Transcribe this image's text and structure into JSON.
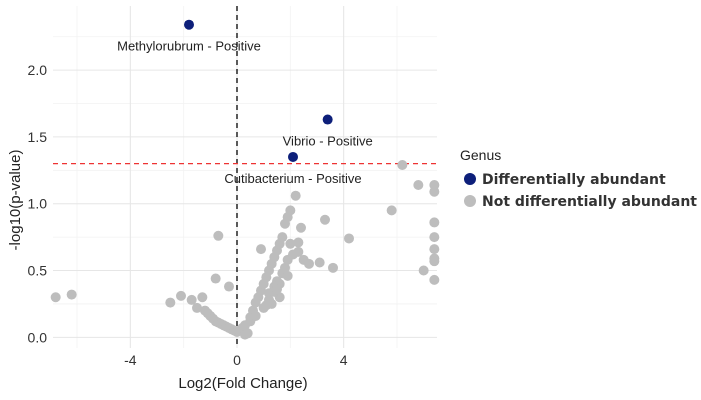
{
  "chart_data": {
    "type": "scatter",
    "title": "",
    "xlabel": "Log2(Fold Change)",
    "ylabel": "-log10(p-value)",
    "xlim": [
      -6.9,
      7.5
    ],
    "ylim": [
      -0.08,
      2.48
    ],
    "x_ticks": [
      -4,
      0,
      4
    ],
    "y_ticks": [
      0.0,
      0.5,
      1.0,
      1.5,
      2.0
    ],
    "x_tick_labels": [
      "-4",
      "0",
      "4"
    ],
    "y_tick_labels": [
      "0.0",
      "0.5",
      "1.0",
      "1.5",
      "2.0"
    ],
    "grid": true,
    "legend_position": "right",
    "legend": {
      "title": "Genus",
      "entries": [
        {
          "label": "Differentially abundant",
          "color": "#0d1f7a"
        },
        {
          "label": "Not differentially abundant",
          "color": "#bdbdbd"
        }
      ]
    },
    "reference_lines": [
      {
        "axis": "x",
        "value": 0,
        "style": "dashed",
        "color": "#000000"
      },
      {
        "axis": "y",
        "value": 1.3,
        "style": "dashed",
        "color": "#ee3333"
      }
    ],
    "series": [
      {
        "name": "Differentially abundant",
        "color": "#0d1f7a",
        "x": [
          -1.8,
          3.4,
          2.1
        ],
        "y": [
          2.34,
          1.63,
          1.35
        ]
      },
      {
        "name": "Not differentially abundant",
        "color": "#bdbdbd",
        "x": [
          -6.8,
          -6.2,
          -2.5,
          -2.1,
          -1.7,
          -1.5,
          -1.3,
          -1.2,
          -1.1,
          -1.0,
          -0.9,
          -0.8,
          -0.7,
          -0.6,
          -0.5,
          -0.4,
          -0.3,
          -0.2,
          -0.1,
          0.0,
          0.1,
          0.2,
          0.3,
          -0.8,
          -0.3,
          0.5,
          0.6,
          0.7,
          0.8,
          0.9,
          1.0,
          1.1,
          1.2,
          1.3,
          1.4,
          1.5,
          1.6,
          1.7,
          1.8,
          1.9,
          2.0,
          2.2,
          2.4,
          1.2,
          1.4,
          1.5,
          1.7,
          1.8,
          1.9,
          2.1,
          1.3,
          1.6,
          1.0,
          1.2,
          1.4,
          1.6,
          2.3,
          2.5,
          2.7,
          3.1,
          3.3,
          3.6,
          4.2,
          5.8,
          6.2,
          6.8,
          7.0,
          7.4,
          7.4,
          7.4,
          7.4,
          7.4,
          7.4,
          7.4,
          7.4,
          -0.7,
          0.9,
          2.0,
          0.5,
          0.7,
          1.1,
          1.5,
          1.9,
          2.3,
          0.3,
          0.4
        ],
        "y": [
          0.3,
          0.32,
          0.26,
          0.31,
          0.28,
          0.22,
          0.3,
          0.2,
          0.18,
          0.16,
          0.14,
          0.12,
          0.11,
          0.1,
          0.09,
          0.08,
          0.07,
          0.06,
          0.05,
          0.04,
          0.05,
          0.07,
          0.09,
          0.44,
          0.38,
          0.15,
          0.2,
          0.26,
          0.3,
          0.35,
          0.4,
          0.45,
          0.5,
          0.55,
          0.6,
          0.65,
          0.7,
          0.75,
          0.85,
          0.9,
          0.95,
          1.06,
          0.82,
          0.33,
          0.38,
          0.42,
          0.48,
          0.52,
          0.58,
          0.62,
          0.25,
          0.3,
          0.22,
          0.28,
          0.34,
          0.4,
          0.71,
          0.58,
          0.55,
          0.56,
          0.88,
          0.52,
          0.74,
          0.95,
          1.29,
          1.14,
          0.5,
          0.57,
          0.59,
          0.43,
          0.86,
          0.66,
          0.75,
          1.14,
          1.09,
          0.76,
          0.66,
          0.7,
          0.12,
          0.16,
          0.24,
          0.36,
          0.46,
          0.64,
          0.02,
          0.03
        ]
      }
    ],
    "annotations": [
      {
        "text": "Methylorubrum - Positive",
        "x": -1.8,
        "y": 2.34
      },
      {
        "text": "Vibrio - Positive",
        "x": 3.4,
        "y": 1.63
      },
      {
        "text": "Cutibacterium - Positive",
        "x": 2.1,
        "y": 1.35
      }
    ]
  }
}
